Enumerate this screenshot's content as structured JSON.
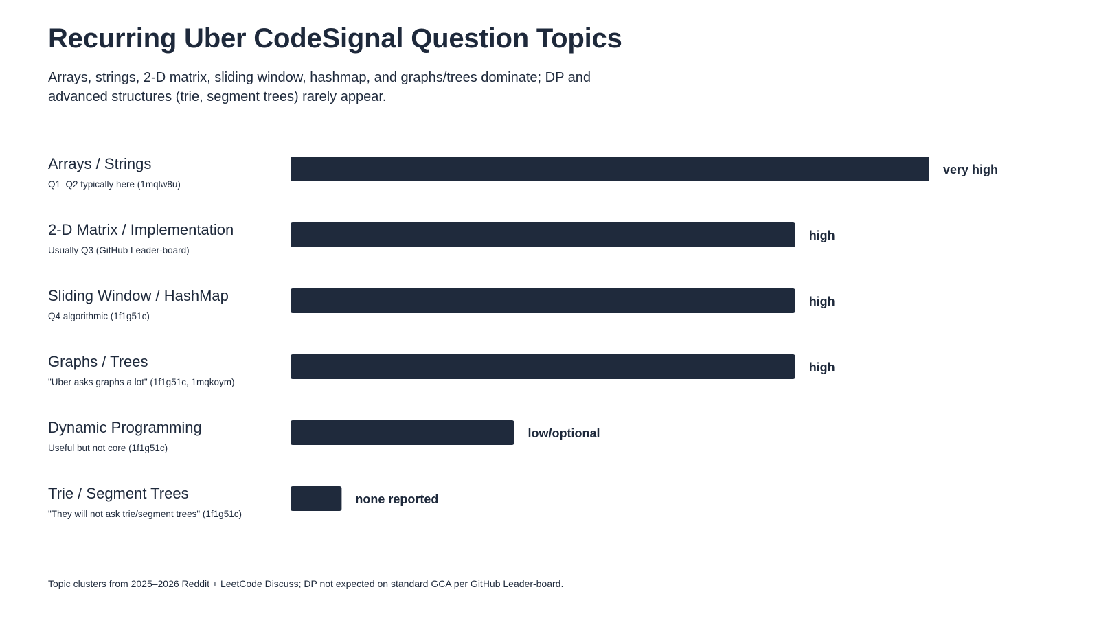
{
  "title": "Recurring Uber CodeSignal Question Topics",
  "subtitle": "Arrays, strings, 2-D matrix, sliding window, hashmap, and graphs/trees dominate; DP and advanced structures (trie, segment trees) rarely appear.",
  "footnote": "Topic clusters from 2025–2026 Reddit + LeetCode Discuss; DP not expected on standard GCA per GitHub Leader-board.",
  "colors": {
    "bar": "#1f2a3c",
    "text": "#1e293b"
  },
  "chart_data": {
    "type": "bar",
    "orientation": "horizontal",
    "grid": false,
    "legend": "none",
    "xlim": [
      0,
      1
    ],
    "rows": [
      {
        "topic": "Arrays / Strings",
        "note": "Q1–Q2 typically here (1mqlw8u)",
        "value": 1.0,
        "value_label": "very high"
      },
      {
        "topic": "2-D Matrix / Implementation",
        "note": "Usually Q3 (GitHub Leader-board)",
        "value": 0.79,
        "value_label": "high"
      },
      {
        "topic": "Sliding Window / HashMap",
        "note": "Q4 algorithmic (1f1g51c)",
        "value": 0.79,
        "value_label": "high"
      },
      {
        "topic": "Graphs / Trees",
        "note": "\"Uber asks graphs a lot\" (1f1g51c, 1mqkoym)",
        "value": 0.79,
        "value_label": "high"
      },
      {
        "topic": "Dynamic Programming",
        "note": "Useful but not core (1f1g51c)",
        "value": 0.35,
        "value_label": "low/optional"
      },
      {
        "topic": "Trie / Segment Trees",
        "note": "\"They will not ask trie/segment trees\" (1f1g51c)",
        "value": 0.08,
        "value_label": "none reported"
      }
    ]
  }
}
